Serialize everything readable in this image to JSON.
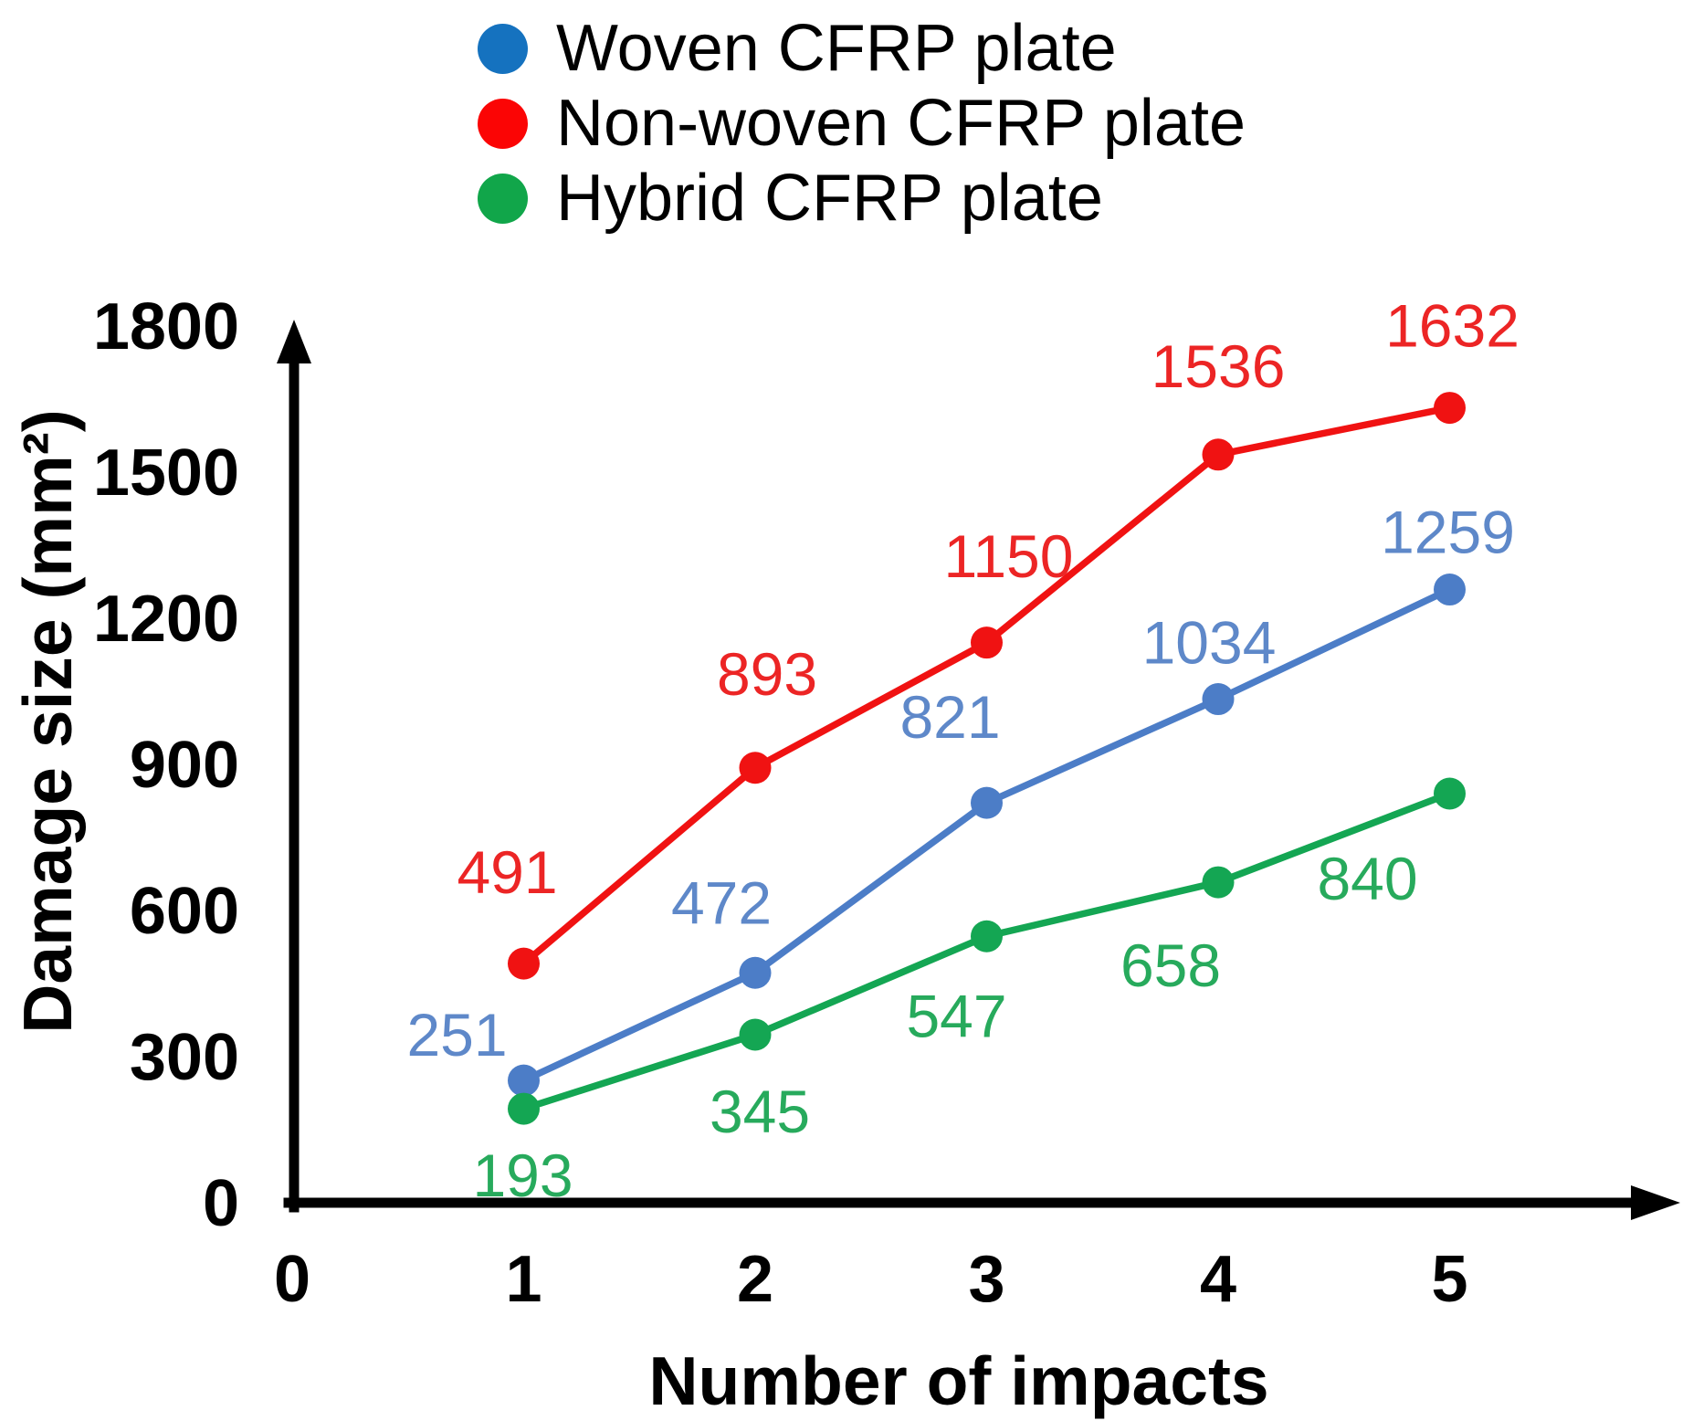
{
  "legend": {
    "items": [
      {
        "label": "Woven CFRP plate",
        "color": "#1572BF"
      },
      {
        "label": "Non-woven CFRP plate",
        "color": "#FB0505"
      },
      {
        "label": "Hybrid CFRP plate",
        "color": "#11A64A"
      }
    ]
  },
  "axes": {
    "x_title": "Number of impacts",
    "y_title": "Damage size (mm²)",
    "x_ticks": [
      0,
      1,
      2,
      3,
      4,
      5
    ],
    "y_ticks": [
      0,
      300,
      600,
      900,
      1200,
      1500,
      1800
    ]
  },
  "chart_data": {
    "type": "line",
    "x": [
      1,
      2,
      3,
      4,
      5
    ],
    "series": [
      {
        "name": "Woven CFRP plate",
        "values": [
          251,
          472,
          821,
          1034,
          1259
        ],
        "line_color": "#4C7DC7",
        "label_color": "#5E88C9",
        "legend_color": "#1572BF"
      },
      {
        "name": "Non-woven CFRP plate",
        "values": [
          491,
          893,
          1150,
          1536,
          1632
        ],
        "line_color": "#F01212",
        "label_color": "#EC2525",
        "legend_color": "#FB0505"
      },
      {
        "name": "Hybrid CFRP plate",
        "values": [
          193,
          345,
          547,
          658,
          840
        ],
        "line_color": "#14A653",
        "label_color": "#27AA5C",
        "legend_color": "#11A64A"
      }
    ],
    "title": "",
    "xlabel": "Number of impacts",
    "ylabel": "Damage size (mm²)",
    "xlim": [
      0,
      5.9
    ],
    "ylim": [
      0,
      1800
    ],
    "grid": false,
    "legend_position": "top-left",
    "point_labels_visible": true
  }
}
